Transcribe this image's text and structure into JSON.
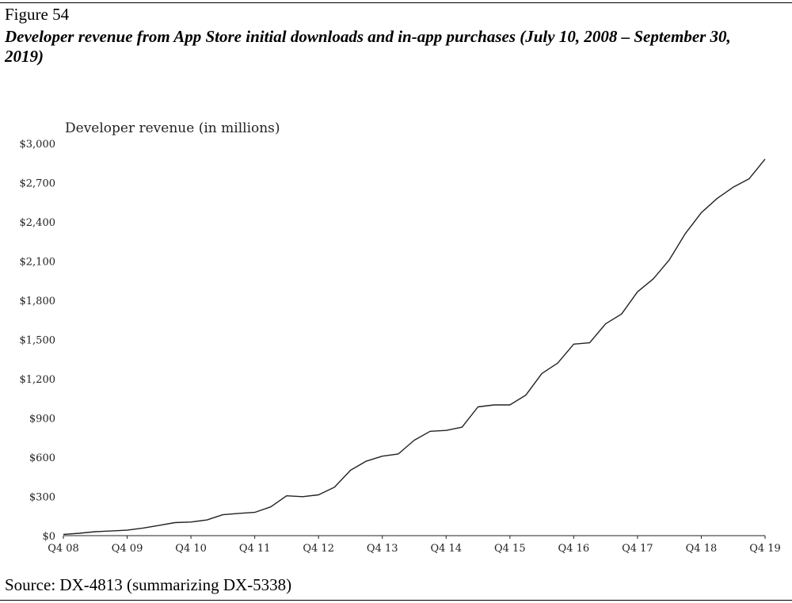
{
  "figure": {
    "label": "Figure 54",
    "title": "Developer revenue from App Store initial downloads and in-app purchases (July 10, 2008 – September 30, 2019)",
    "source": "Source: DX-4813 (summarizing DX-5338)"
  },
  "chart_data": {
    "type": "line",
    "title": "Developer revenue from App Store initial downloads and in-app purchases (July 10, 2008 – September 30, 2019)",
    "ylabel": "Developer revenue (in millions)",
    "xlabel": "",
    "ylim": [
      0,
      3000
    ],
    "yticks": [
      "$0",
      "$300",
      "$600",
      "$900",
      "$1,200",
      "$1,500",
      "$1,800",
      "$2,100",
      "$2,400",
      "$2,700",
      "$3,000"
    ],
    "xticks": [
      "Q4 08",
      "Q4 09",
      "Q4 10",
      "Q4 11",
      "Q4 12",
      "Q4 13",
      "Q4 14",
      "Q4 15",
      "Q4 16",
      "Q4 17",
      "Q4 18",
      "Q4 19"
    ],
    "grid": false,
    "line_color": "#222222",
    "series": [
      {
        "values": [
          10,
          18,
          30,
          36,
          42,
          58,
          78,
          100,
          104,
          120,
          160,
          170,
          178,
          220,
          305,
          298,
          312,
          370,
          500,
          570,
          608,
          625,
          730,
          798,
          805,
          830,
          985,
          1000,
          1000,
          1075,
          1240,
          1320,
          1465,
          1475,
          1620,
          1695,
          1865,
          1965,
          2110,
          2310,
          2470,
          2580,
          2665,
          2730,
          2880
        ]
      }
    ]
  }
}
